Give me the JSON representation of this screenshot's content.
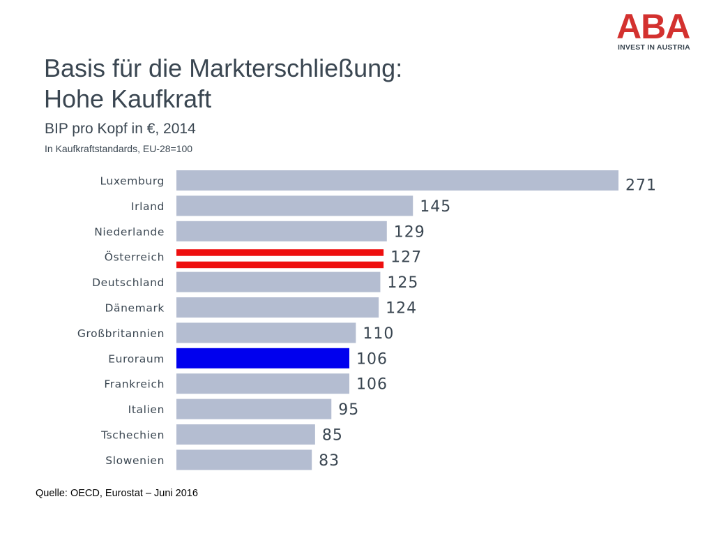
{
  "header": {
    "title_line1": "Basis für die Markterschließung:",
    "title_line2": "Hohe Kaufkraft"
  },
  "logo": {
    "name": "ABA",
    "tagline": "INVEST IN AUSTRIA",
    "color": "#d3312f"
  },
  "footer": {
    "source": "Quelle: OECD, Eurostat – Juni 2016"
  },
  "chart_data": {
    "type": "bar",
    "orientation": "horizontal",
    "title": "BIP pro Kopf in €, 2014",
    "subtitle": "In Kaufkraftstandards, EU-28=100",
    "xlabel": "",
    "ylabel": "",
    "grid": false,
    "legend": "none",
    "xlim": [
      0,
      271
    ],
    "categories": [
      "Luxemburg",
      "Irland",
      "Niederlande",
      "Österreich",
      "Deutschland",
      "Dänemark",
      "Großbritannien",
      "Euroraum",
      "Frankreich",
      "Italien",
      "Tschechien",
      "Slowenien"
    ],
    "values": [
      271,
      145,
      129,
      127,
      125,
      124,
      110,
      106,
      106,
      95,
      85,
      83
    ],
    "colors": {
      "default": "#b4bdd1",
      "highlight_austria": "#ee0f0f",
      "highlight_euro": "#0000ee",
      "text": "#3a4651"
    },
    "highlights": {
      "Österreich": "austria",
      "Euroraum": "euro"
    }
  }
}
